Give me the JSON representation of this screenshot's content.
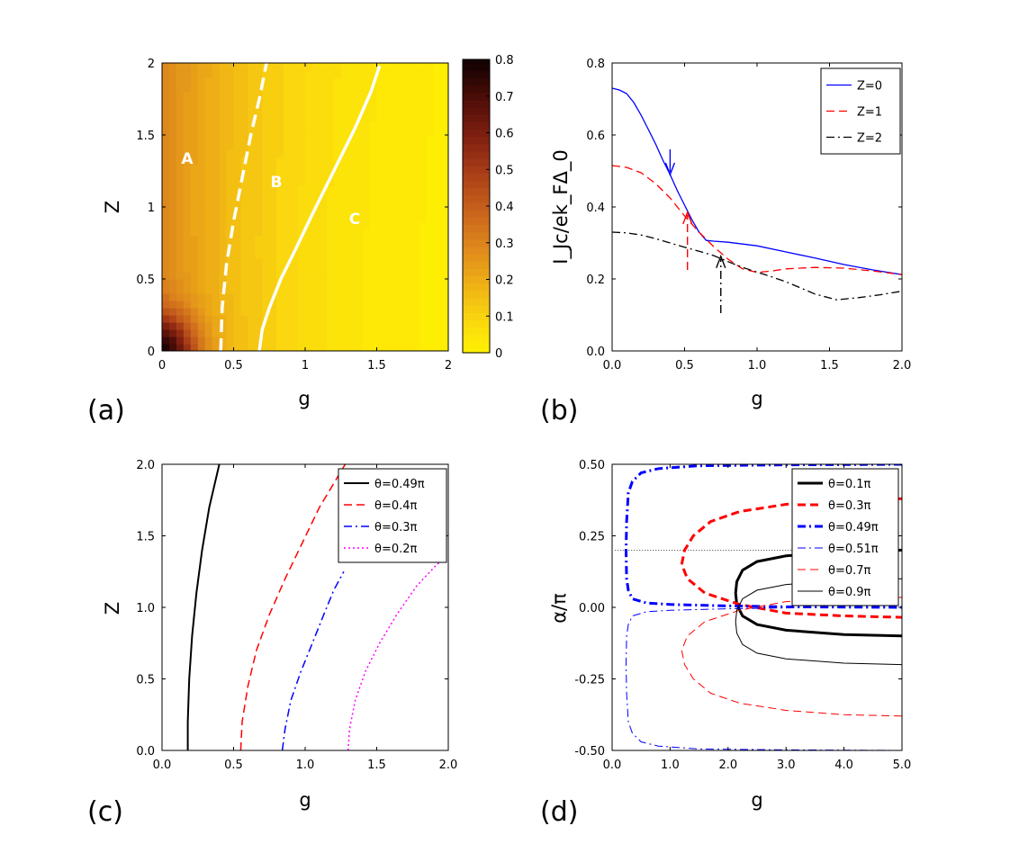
{
  "chart_data": [
    {
      "panel": "(a)",
      "type": "heatmap",
      "title": "",
      "xlabel": "g",
      "ylabel": "Z",
      "xlim": [
        0,
        2
      ],
      "ylim": [
        0,
        2
      ],
      "xticks": [
        "0",
        "0.5",
        "1",
        "1.5",
        "2"
      ],
      "yticks": [
        "0",
        "0.5",
        "1",
        "1.5",
        "2"
      ],
      "colorbar": {
        "range": [
          0,
          0.8
        ],
        "ticks": [
          "0",
          "0.1",
          "0.2",
          "0.3",
          "0.4",
          "0.5",
          "0.6",
          "0.7",
          "0.8"
        ]
      },
      "regions": [
        "A",
        "B",
        "C"
      ],
      "boundaries": [
        {
          "name": "dashed",
          "style": "dashed",
          "points": [
            [
              0.41,
              0
            ],
            [
              0.42,
              0.3
            ],
            [
              0.45,
              0.6
            ],
            [
              0.5,
              0.9
            ],
            [
              0.56,
              1.2
            ],
            [
              0.62,
              1.5
            ],
            [
              0.68,
              1.75
            ],
            [
              0.73,
              2.0
            ]
          ]
        },
        {
          "name": "solid",
          "style": "solid",
          "points": [
            [
              0.68,
              0
            ],
            [
              0.7,
              0.15
            ],
            [
              0.75,
              0.3
            ],
            [
              0.83,
              0.5
            ],
            [
              0.93,
              0.7
            ],
            [
              1.05,
              0.95
            ],
            [
              1.2,
              1.25
            ],
            [
              1.35,
              1.55
            ],
            [
              1.46,
              1.8
            ],
            [
              1.52,
              1.98
            ]
          ]
        }
      ]
    },
    {
      "panel": "(b)",
      "type": "line",
      "xlabel": "g",
      "ylabel": "I_Jc/ek_FΔ_0",
      "xlim": [
        0,
        2
      ],
      "ylim": [
        0,
        0.8
      ],
      "xticks": [
        "0.0",
        "0.5",
        "1.0",
        "1.5",
        "2.0"
      ],
      "yticks": [
        "0.0",
        "0.2",
        "0.4",
        "0.6",
        "0.8"
      ],
      "legend": "top-right",
      "series": [
        {
          "name": "Z=0",
          "color": "#0000ff",
          "style": "solid",
          "points": [
            [
              0,
              0.73
            ],
            [
              0.05,
              0.725
            ],
            [
              0.1,
              0.715
            ],
            [
              0.15,
              0.69
            ],
            [
              0.2,
              0.655
            ],
            [
              0.25,
              0.615
            ],
            [
              0.3,
              0.575
            ],
            [
              0.35,
              0.53
            ],
            [
              0.4,
              0.49
            ],
            [
              0.45,
              0.445
            ],
            [
              0.5,
              0.405
            ],
            [
              0.55,
              0.365
            ],
            [
              0.6,
              0.33
            ],
            [
              0.65,
              0.307
            ],
            [
              0.7,
              0.305
            ],
            [
              0.8,
              0.302
            ],
            [
              1.0,
              0.292
            ],
            [
              1.2,
              0.275
            ],
            [
              1.4,
              0.258
            ],
            [
              1.6,
              0.24
            ],
            [
              1.8,
              0.225
            ],
            [
              2.0,
              0.212
            ]
          ]
        },
        {
          "name": "Z=1",
          "color": "#ff0000",
          "style": "dashed",
          "points": [
            [
              0,
              0.515
            ],
            [
              0.1,
              0.51
            ],
            [
              0.2,
              0.495
            ],
            [
              0.3,
              0.465
            ],
            [
              0.4,
              0.425
            ],
            [
              0.5,
              0.375
            ],
            [
              0.6,
              0.33
            ],
            [
              0.7,
              0.29
            ],
            [
              0.8,
              0.255
            ],
            [
              0.9,
              0.228
            ],
            [
              1.0,
              0.218
            ],
            [
              1.1,
              0.222
            ],
            [
              1.2,
              0.228
            ],
            [
              1.4,
              0.232
            ],
            [
              1.6,
              0.23
            ],
            [
              1.8,
              0.222
            ],
            [
              2.0,
              0.212
            ]
          ]
        },
        {
          "name": "Z=2",
          "color": "#000000",
          "style": "dashdot",
          "points": [
            [
              0,
              0.33
            ],
            [
              0.1,
              0.328
            ],
            [
              0.2,
              0.322
            ],
            [
              0.3,
              0.312
            ],
            [
              0.4,
              0.3
            ],
            [
              0.5,
              0.288
            ],
            [
              0.6,
              0.277
            ],
            [
              0.7,
              0.265
            ],
            [
              0.8,
              0.248
            ],
            [
              0.9,
              0.232
            ],
            [
              1.0,
              0.219
            ],
            [
              1.1,
              0.206
            ],
            [
              1.2,
              0.192
            ],
            [
              1.3,
              0.175
            ],
            [
              1.4,
              0.158
            ],
            [
              1.55,
              0.142
            ],
            [
              1.7,
              0.148
            ],
            [
              1.85,
              0.156
            ],
            [
              2.0,
              0.166
            ]
          ]
        }
      ],
      "arrows": [
        {
          "color": "#0000ff",
          "style": "solid",
          "from": [
            0.4,
            0.56
          ],
          "to": [
            0.4,
            0.49
          ]
        },
        {
          "color": "#ff0000",
          "style": "dashed",
          "from": [
            0.52,
            0.225
          ],
          "to": [
            0.52,
            0.385
          ]
        },
        {
          "color": "#000000",
          "style": "dashdot",
          "from": [
            0.75,
            0.105
          ],
          "to": [
            0.75,
            0.263
          ]
        }
      ]
    },
    {
      "panel": "(c)",
      "type": "line",
      "xlabel": "g",
      "ylabel": "Z",
      "xlim": [
        0,
        2
      ],
      "ylim": [
        0,
        2
      ],
      "xticks": [
        "0.0",
        "0.5",
        "1.0",
        "1.5",
        "2.0"
      ],
      "yticks": [
        "0.0",
        "0.5",
        "1.0",
        "1.5",
        "2.0"
      ],
      "legend": "top-right",
      "series": [
        {
          "name": "θ=0.49π",
          "color": "#000000",
          "style": "solid",
          "width": 2,
          "points": [
            [
              0.18,
              0
            ],
            [
              0.18,
              0.2
            ],
            [
              0.19,
              0.5
            ],
            [
              0.21,
              0.8
            ],
            [
              0.24,
              1.1
            ],
            [
              0.28,
              1.4
            ],
            [
              0.33,
              1.7
            ],
            [
              0.4,
              2.0
            ]
          ]
        },
        {
          "name": "θ=0.4π",
          "color": "#ff0000",
          "style": "dashed",
          "width": 1.5,
          "points": [
            [
              0.55,
              0
            ],
            [
              0.56,
              0.2
            ],
            [
              0.6,
              0.45
            ],
            [
              0.66,
              0.7
            ],
            [
              0.75,
              0.95
            ],
            [
              0.86,
              1.2
            ],
            [
              0.98,
              1.45
            ],
            [
              1.1,
              1.7
            ],
            [
              1.22,
              1.9
            ],
            [
              1.28,
              2.0
            ]
          ]
        },
        {
          "name": "θ=0.3π",
          "color": "#0000ff",
          "style": "dashdot",
          "width": 1.5,
          "points": [
            [
              0.84,
              0
            ],
            [
              0.86,
              0.15
            ],
            [
              0.9,
              0.35
            ],
            [
              0.97,
              0.55
            ],
            [
              1.05,
              0.75
            ],
            [
              1.13,
              0.95
            ],
            [
              1.2,
              1.12
            ],
            [
              1.27,
              1.25
            ]
          ]
        },
        {
          "name": "θ=0.2π",
          "color": "#ff00ff",
          "style": "dotted",
          "width": 1.5,
          "points": [
            [
              1.3,
              0
            ],
            [
              1.31,
              0.15
            ],
            [
              1.35,
              0.35
            ],
            [
              1.42,
              0.55
            ],
            [
              1.52,
              0.75
            ],
            [
              1.64,
              0.95
            ],
            [
              1.78,
              1.15
            ],
            [
              1.92,
              1.3
            ],
            [
              2.0,
              1.36
            ]
          ]
        }
      ]
    },
    {
      "panel": "(d)",
      "type": "line",
      "xlabel": "g",
      "ylabel": "α/π",
      "xlim": [
        0,
        5
      ],
      "ylim": [
        -0.5,
        0.5
      ],
      "xticks": [
        "0.0",
        "1.0",
        "2.0",
        "3.0",
        "4.0",
        "5.0"
      ],
      "yticks": [
        "-0.50",
        "-0.25",
        "0.00",
        "0.25",
        "0.50"
      ],
      "legend": "top-right",
      "reference_line": {
        "y": 0.2,
        "style": "dotted"
      },
      "series": [
        {
          "name": "θ=0.1π",
          "color": "#000000",
          "style": "solid",
          "width": 3,
          "points": [
            [
              5.0,
              0.2
            ],
            [
              4.0,
              0.195
            ],
            [
              3.0,
              0.18
            ],
            [
              2.5,
              0.16
            ],
            [
              2.25,
              0.13
            ],
            [
              2.15,
              0.09
            ],
            [
              2.13,
              0.05
            ],
            [
              2.15,
              0.01
            ],
            [
              2.25,
              -0.03
            ],
            [
              2.5,
              -0.06
            ],
            [
              3.0,
              -0.08
            ],
            [
              4.0,
              -0.095
            ],
            [
              5.0,
              -0.1
            ]
          ]
        },
        {
          "name": "θ=0.3π",
          "color": "#ff0000",
          "style": "dashed",
          "width": 3,
          "points": [
            [
              5.0,
              0.38
            ],
            [
              4.0,
              0.375
            ],
            [
              3.0,
              0.36
            ],
            [
              2.2,
              0.335
            ],
            [
              1.7,
              0.3
            ],
            [
              1.4,
              0.25
            ],
            [
              1.25,
              0.2
            ],
            [
              1.2,
              0.15
            ],
            [
              1.3,
              0.1
            ],
            [
              1.6,
              0.05
            ],
            [
              2.2,
              0.01
            ],
            [
              3.0,
              -0.02
            ],
            [
              4.0,
              -0.03
            ],
            [
              5.0,
              -0.035
            ]
          ]
        },
        {
          "name": "θ=0.49π",
          "color": "#0000ff",
          "style": "dashdot",
          "width": 3,
          "points": [
            [
              5.0,
              0.5
            ],
            [
              3.0,
              0.498
            ],
            [
              1.5,
              0.495
            ],
            [
              0.8,
              0.485
            ],
            [
              0.5,
              0.47
            ],
            [
              0.35,
              0.44
            ],
            [
              0.28,
              0.4
            ],
            [
              0.25,
              0.3
            ],
            [
              0.24,
              0.2
            ],
            [
              0.25,
              0.1
            ],
            [
              0.28,
              0.06
            ],
            [
              0.35,
              0.03
            ],
            [
              0.6,
              0.015
            ],
            [
              1.0,
              0.01
            ],
            [
              2.0,
              0.005
            ],
            [
              3.0,
              0.002
            ],
            [
              5.0,
              0.0
            ]
          ]
        },
        {
          "name": "θ=0.51π",
          "color": "#0000ff",
          "style": "dashdot",
          "width": 1,
          "points": [
            [
              5.0,
              -0.5
            ],
            [
              3.0,
              -0.498
            ],
            [
              1.5,
              -0.495
            ],
            [
              0.8,
              -0.485
            ],
            [
              0.5,
              -0.47
            ],
            [
              0.35,
              -0.44
            ],
            [
              0.28,
              -0.4
            ],
            [
              0.25,
              -0.3
            ],
            [
              0.24,
              -0.2
            ],
            [
              0.25,
              -0.1
            ],
            [
              0.28,
              -0.06
            ],
            [
              0.35,
              -0.03
            ],
            [
              0.6,
              -0.015
            ],
            [
              1.0,
              -0.01
            ],
            [
              2.0,
              -0.005
            ],
            [
              3.0,
              -0.002
            ],
            [
              5.0,
              0.0
            ]
          ]
        },
        {
          "name": "θ=0.7π",
          "color": "#ff0000",
          "style": "dashed",
          "width": 1,
          "points": [
            [
              5.0,
              -0.38
            ],
            [
              4.0,
              -0.375
            ],
            [
              3.0,
              -0.36
            ],
            [
              2.2,
              -0.335
            ],
            [
              1.7,
              -0.3
            ],
            [
              1.4,
              -0.25
            ],
            [
              1.25,
              -0.2
            ],
            [
              1.2,
              -0.15
            ],
            [
              1.3,
              -0.1
            ],
            [
              1.6,
              -0.05
            ],
            [
              2.2,
              -0.01
            ],
            [
              3.0,
              0.02
            ],
            [
              4.0,
              0.03
            ],
            [
              5.0,
              0.035
            ]
          ]
        },
        {
          "name": "θ=0.9π",
          "color": "#000000",
          "style": "solid",
          "width": 1,
          "points": [
            [
              5.0,
              -0.2
            ],
            [
              4.0,
              -0.195
            ],
            [
              3.0,
              -0.18
            ],
            [
              2.5,
              -0.16
            ],
            [
              2.25,
              -0.13
            ],
            [
              2.15,
              -0.09
            ],
            [
              2.13,
              -0.05
            ],
            [
              2.15,
              -0.01
            ],
            [
              2.25,
              0.03
            ],
            [
              2.5,
              0.06
            ],
            [
              3.0,
              0.08
            ],
            [
              4.0,
              0.095
            ],
            [
              5.0,
              0.1
            ]
          ]
        }
      ]
    }
  ]
}
